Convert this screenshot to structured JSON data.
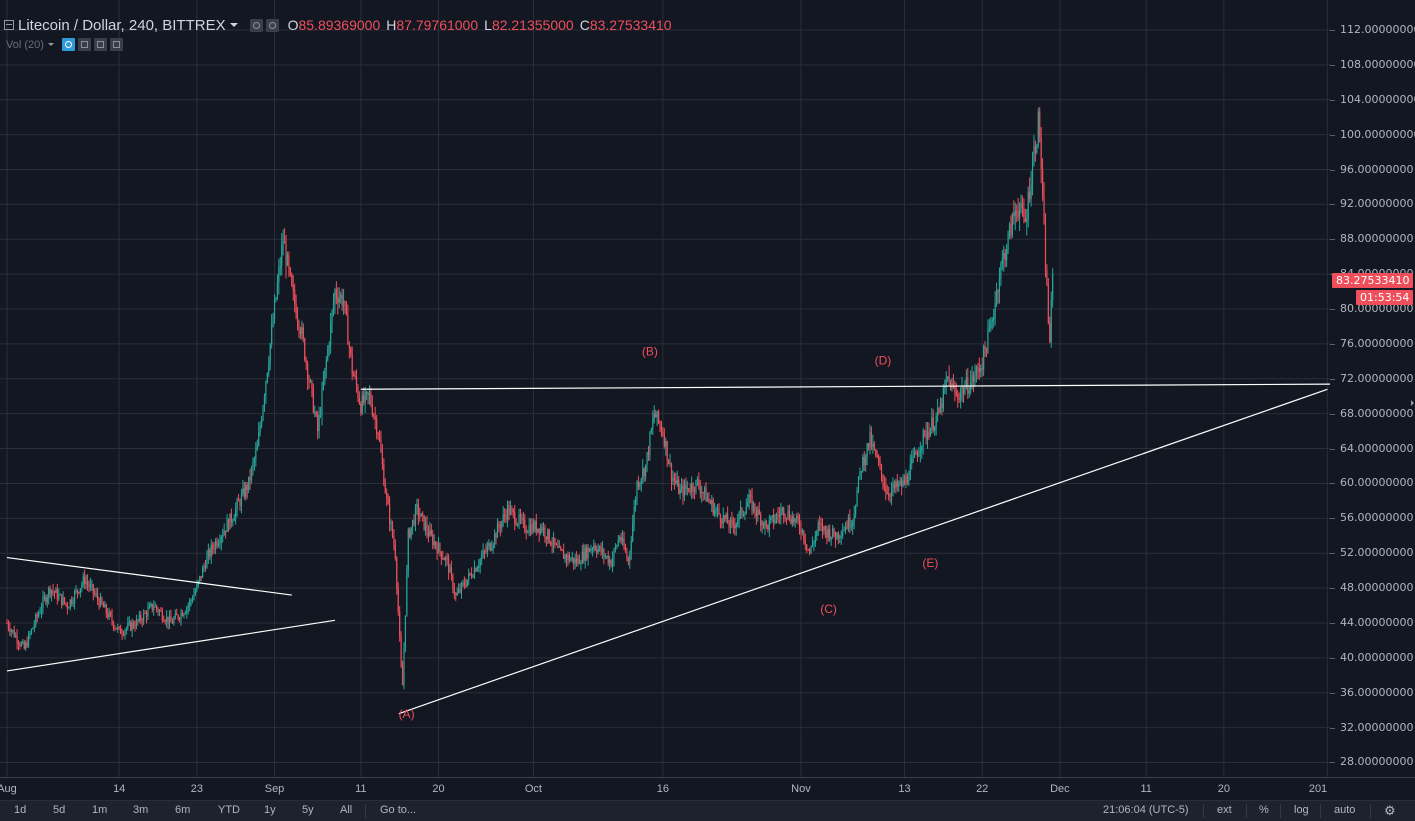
{
  "header": {
    "symbol_title": "Litecoin / Dollar, 240, BITTREX",
    "ohlc": [
      {
        "key": "O",
        "value": "85.89369000"
      },
      {
        "key": "H",
        "value": "87.79761000"
      },
      {
        "key": "L",
        "value": "82.21355000"
      },
      {
        "key": "C",
        "value": "83.27533410"
      }
    ],
    "indicator_label": "Vol (20)"
  },
  "colors": {
    "background": "#131722",
    "grid": "#2a2e39",
    "up_candle": "#26a69a",
    "down_candle": "#ef4f5b",
    "trendline": "#ffffff",
    "wave_label": "#ef4f5b",
    "price_badge": "#ef4f5b"
  },
  "price_axis": {
    "min": 28,
    "max": 112,
    "ticks": [
      "112.00000000",
      "108.00000000",
      "104.00000000",
      "100.00000000",
      "96.00000000",
      "92.00000000",
      "88.00000000",
      "84.00000000",
      "80.00000000",
      "76.00000000",
      "72.00000000",
      "68.00000000",
      "64.00000000",
      "60.00000000",
      "56.00000000",
      "52.00000000",
      "48.00000000",
      "44.00000000",
      "40.00000000",
      "36.00000000",
      "32.00000000",
      "28.00000000"
    ],
    "current_price_label": "83.27533410",
    "current_price": 83.2753341,
    "countdown_label": "01:53:54"
  },
  "time_axis": {
    "ticks": [
      {
        "label": "Aug",
        "day": 0
      },
      {
        "label": "14",
        "day": 13
      },
      {
        "label": "23",
        "day": 22
      },
      {
        "label": "Sep",
        "day": 31
      },
      {
        "label": "11",
        "day": 41
      },
      {
        "label": "20",
        "day": 50
      },
      {
        "label": "Oct",
        "day": 61
      },
      {
        "label": "16",
        "day": 76
      },
      {
        "label": "Nov",
        "day": 92
      },
      {
        "label": "13",
        "day": 104
      },
      {
        "label": "22",
        "day": 113
      },
      {
        "label": "Dec",
        "day": 122
      },
      {
        "label": "11",
        "day": 132
      },
      {
        "label": "20",
        "day": 141
      },
      {
        "label": "201",
        "day": 153
      }
    ]
  },
  "chart_data": {
    "type": "candlestick",
    "x_unit": "days from Aug 1",
    "y_range": [
      28,
      112
    ],
    "price_path": [
      [
        0,
        44
      ],
      [
        2,
        41
      ],
      [
        4,
        46
      ],
      [
        5,
        48
      ],
      [
        7,
        46
      ],
      [
        9,
        49
      ],
      [
        11,
        46
      ],
      [
        13,
        43
      ],
      [
        15,
        44
      ],
      [
        17,
        46
      ],
      [
        19,
        44
      ],
      [
        21,
        46
      ],
      [
        22,
        48
      ],
      [
        23,
        51
      ],
      [
        24,
        53
      ],
      [
        26,
        56
      ],
      [
        28,
        60
      ],
      [
        29,
        64
      ],
      [
        30,
        72
      ],
      [
        31,
        80
      ],
      [
        32,
        88
      ],
      [
        33,
        82
      ],
      [
        34,
        78
      ],
      [
        35,
        72
      ],
      [
        36,
        66
      ],
      [
        37,
        74
      ],
      [
        38,
        82
      ],
      [
        39,
        81
      ],
      [
        40,
        73
      ],
      [
        41,
        69
      ],
      [
        42,
        70
      ],
      [
        43,
        66
      ],
      [
        44,
        58
      ],
      [
        45,
        52
      ],
      [
        45.8,
        36
      ],
      [
        46.5,
        54
      ],
      [
        47.5,
        57
      ],
      [
        49,
        54
      ],
      [
        51,
        51
      ],
      [
        52,
        47
      ],
      [
        54,
        50
      ],
      [
        56,
        53
      ],
      [
        58,
        57
      ],
      [
        60,
        55
      ],
      [
        62,
        55
      ],
      [
        64,
        52
      ],
      [
        66,
        51
      ],
      [
        68,
        53
      ],
      [
        70,
        51
      ],
      [
        71,
        54
      ],
      [
        72,
        51
      ],
      [
        73,
        60
      ],
      [
        74,
        62
      ],
      [
        75,
        68
      ],
      [
        76,
        66
      ],
      [
        77,
        61
      ],
      [
        78,
        59
      ],
      [
        80,
        60
      ],
      [
        82,
        57
      ],
      [
        84,
        55
      ],
      [
        86,
        58
      ],
      [
        88,
        55
      ],
      [
        90,
        57
      ],
      [
        92,
        55
      ],
      [
        93,
        52
      ],
      [
        94,
        55
      ],
      [
        96,
        54
      ],
      [
        98,
        56
      ],
      [
        99,
        62
      ],
      [
        100,
        65
      ],
      [
        101,
        62
      ],
      [
        102,
        59
      ],
      [
        104,
        60
      ],
      [
        106,
        65
      ],
      [
        108,
        68
      ],
      [
        109,
        72
      ],
      [
        110,
        70
      ],
      [
        111,
        71
      ],
      [
        112,
        72
      ],
      [
        113,
        74
      ],
      [
        114,
        78
      ],
      [
        115,
        84
      ],
      [
        116,
        88
      ],
      [
        117,
        92
      ],
      [
        118,
        90
      ],
      [
        119,
        98
      ],
      [
        119.6,
        102
      ],
      [
        120,
        92
      ],
      [
        120.8,
        76
      ],
      [
        121.2,
        84
      ]
    ],
    "trendlines": [
      {
        "name": "consolidation-upper-line",
        "from": [
          0,
          51.5
        ],
        "to": [
          33,
          47.2
        ]
      },
      {
        "name": "consolidation-lower-line",
        "from": [
          0,
          38.5
        ],
        "to": [
          38,
          44.3
        ]
      },
      {
        "name": "resistance-line",
        "from": [
          41,
          70.8
        ],
        "to": [
          155,
          71.4
        ]
      },
      {
        "name": "support-line",
        "from": [
          45.4,
          33.6
        ],
        "to": [
          153,
          70.8
        ]
      }
    ],
    "wave_labels": [
      {
        "text": "(A)",
        "day": 46.3,
        "price": 34.5,
        "where": "below"
      },
      {
        "text": "(B)",
        "day": 74.5,
        "price": 74.2,
        "where": "above"
      },
      {
        "text": "(C)",
        "day": 95.2,
        "price": 46.5,
        "where": "below"
      },
      {
        "text": "(D)",
        "day": 101.5,
        "price": 73.2,
        "where": "above"
      },
      {
        "text": "(E)",
        "day": 107,
        "price": 51.8,
        "where": "below"
      }
    ]
  },
  "toolbar": {
    "ranges": [
      "1d",
      "5d",
      "1m",
      "3m",
      "6m",
      "YTD",
      "1y",
      "5y",
      "All"
    ],
    "goto": "Go to...",
    "clock": "21:06:04 (UTC-5)",
    "ext": "ext",
    "percent": "%",
    "log": "log",
    "auto": "auto",
    "settings_icon": "gear-icon"
  }
}
